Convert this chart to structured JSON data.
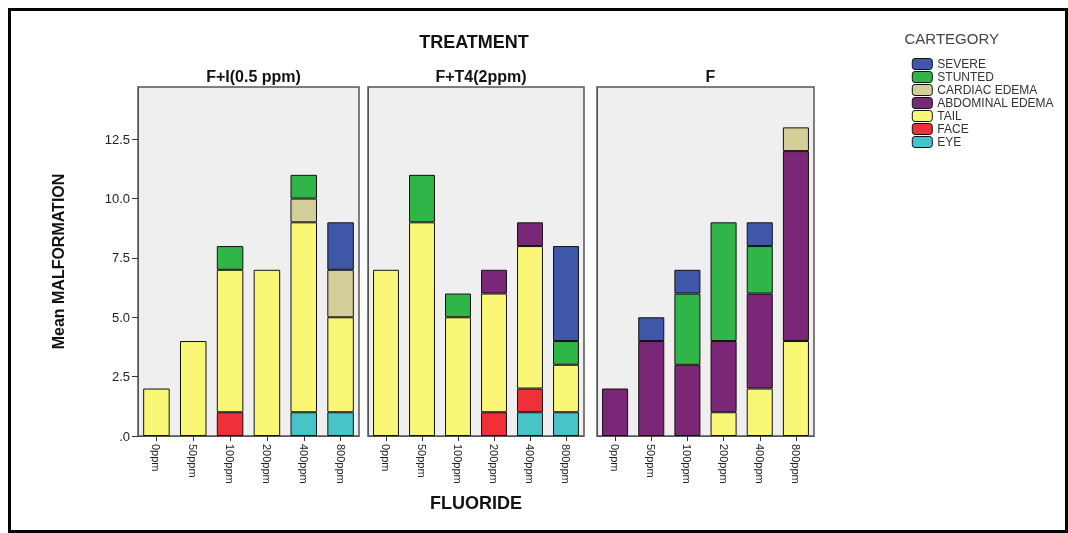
{
  "chart_data": [
    {
      "type": "bar",
      "title": "F+I(0.5 ppm)",
      "ylabel": "Mean MALFORMATION",
      "categories": [
        "0ppm",
        "50ppm",
        "100ppm",
        "200ppm",
        "400ppm",
        "800ppm"
      ],
      "stacked": true,
      "ylim": [
        0,
        14.7
      ],
      "yticks": [
        {
          "value": 0,
          "label": ".0"
        },
        2.5,
        {
          "value": 5,
          "label": "5.0"
        },
        7.5,
        {
          "value": 10,
          "label": "10.0"
        },
        12.5
      ],
      "grid": false,
      "legend": false,
      "series": [
        {
          "color": "#46c4c8",
          "values": [
            null,
            null,
            null,
            null,
            1,
            1
          ]
        },
        {
          "color": "#ef3038",
          "values": [
            null,
            null,
            1,
            null,
            null,
            null
          ]
        },
        {
          "color": "#f9f775",
          "values": [
            2,
            4,
            6,
            7,
            8,
            4
          ]
        },
        {
          "color": "#7b2777",
          "values": [
            null,
            null,
            null,
            null,
            null,
            null
          ]
        },
        {
          "color": "#d4cf98",
          "values": [
            null,
            null,
            null,
            null,
            1,
            2
          ]
        },
        {
          "color": "#2fb548",
          "values": [
            null,
            null,
            1,
            null,
            1,
            null
          ]
        },
        {
          "color": "#3f57a8",
          "values": [
            null,
            null,
            null,
            null,
            null,
            2
          ]
        }
      ]
    },
    {
      "type": "bar",
      "title": "F+T4(2ppm)",
      "xlabel": "FLUORIDE",
      "annotations": [
        "TREATMENT"
      ],
      "categories": [
        "0ppm",
        "50ppm",
        "100ppm",
        "200ppm",
        "400ppm",
        "800ppm"
      ],
      "stacked": true,
      "ylim": [
        0,
        14.7
      ],
      "tick_labels": "x",
      "grid": false,
      "legend": false,
      "series": [
        {
          "color": "#46c4c8",
          "values": [
            null,
            null,
            null,
            null,
            1,
            1
          ]
        },
        {
          "color": "#ef3038",
          "values": [
            null,
            null,
            null,
            1,
            1,
            null
          ]
        },
        {
          "color": "#f9f775",
          "values": [
            7,
            9,
            5,
            5,
            6,
            2
          ]
        },
        {
          "color": "#7b2777",
          "values": [
            null,
            null,
            null,
            1,
            1,
            null
          ]
        },
        {
          "color": "#d4cf98",
          "values": [
            null,
            null,
            null,
            null,
            null,
            null
          ]
        },
        {
          "color": "#2fb548",
          "values": [
            null,
            2,
            1,
            null,
            null,
            1
          ]
        },
        {
          "color": "#3f57a8",
          "values": [
            null,
            null,
            null,
            null,
            null,
            4
          ]
        }
      ]
    },
    {
      "type": "bar",
      "title": "F",
      "legend_title": "CARTEGORY",
      "categories": [
        "0ppm",
        "50ppm",
        "100ppm",
        "200ppm",
        "400ppm",
        "800ppm"
      ],
      "stacked": true,
      "ylim": [
        0,
        14.7
      ],
      "tick_labels": "x",
      "grid": false,
      "legend": "right",
      "series": [
        {
          "name": "EYE",
          "color": "#46c4c8",
          "values": [
            null,
            null,
            null,
            null,
            null,
            null
          ]
        },
        {
          "name": "FACE",
          "color": "#ef3038",
          "values": [
            null,
            null,
            null,
            null,
            null,
            null
          ]
        },
        {
          "name": "TAIL",
          "color": "#f9f775",
          "values": [
            null,
            null,
            null,
            1,
            2,
            4
          ]
        },
        {
          "name": "ABDOMINAL EDEMA",
          "color": "#7b2777",
          "values": [
            2,
            4,
            3,
            3,
            4,
            8
          ]
        },
        {
          "name": "CARDIAC EDEMA",
          "color": "#d4cf98",
          "values": [
            null,
            null,
            null,
            null,
            null,
            1
          ]
        },
        {
          "name": "STUNTED",
          "color": "#2fb548",
          "values": [
            null,
            null,
            3,
            5,
            2,
            null
          ]
        },
        {
          "name": "SEVERE",
          "color": "#3f57a8",
          "values": [
            null,
            1,
            1,
            null,
            1,
            null
          ]
        }
      ]
    }
  ]
}
